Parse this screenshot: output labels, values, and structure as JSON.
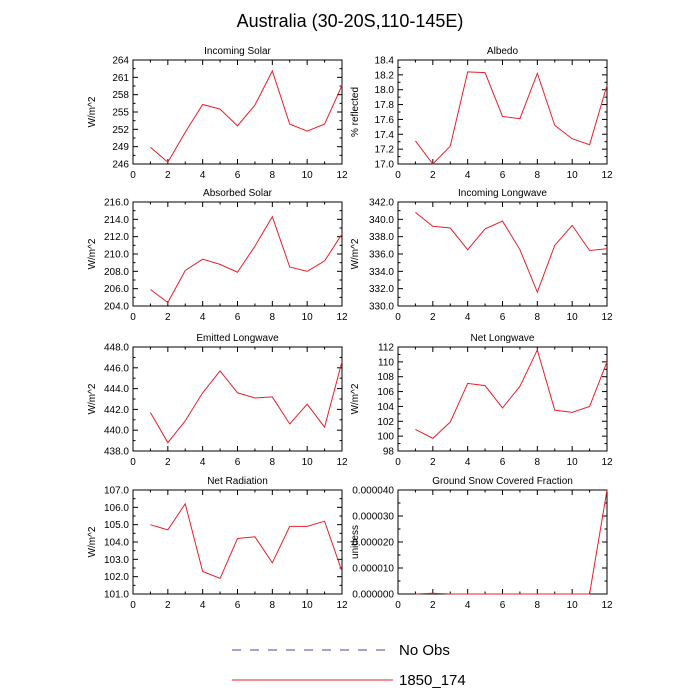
{
  "title": "Australia (30-20S,110-145E)",
  "legend": [
    {
      "label": "No Obs",
      "color": "#4a4aa0",
      "dash": true
    },
    {
      "label": "1850_174",
      "color": "#e8202a",
      "dash": false
    }
  ],
  "chart_data": [
    {
      "type": "line",
      "title": "Incoming Solar",
      "ylabel": "W/m^2",
      "xlim": [
        0,
        12
      ],
      "ylim": [
        246,
        264
      ],
      "xticks": [
        0,
        2,
        4,
        6,
        8,
        10,
        12
      ],
      "yticks": [
        "246",
        "249",
        "252",
        "255",
        "258",
        "261",
        "264"
      ],
      "series": [
        {
          "x": [
            1,
            2,
            3,
            4,
            5,
            6,
            7,
            8,
            9,
            10,
            11,
            12
          ],
          "values": [
            248.9,
            246.3,
            251.5,
            256.3,
            255.5,
            252.6,
            256.2,
            262.1,
            252.9,
            251.7,
            252.9,
            259.6
          ]
        }
      ]
    },
    {
      "type": "line",
      "title": "Albedo",
      "ylabel": "% reflected",
      "xlim": [
        0,
        12
      ],
      "ylim": [
        17.0,
        18.4
      ],
      "xticks": [
        0,
        2,
        4,
        6,
        8,
        10,
        12
      ],
      "yticks": [
        "17.0",
        "17.2",
        "17.4",
        "17.6",
        "17.8",
        "18.0",
        "18.2",
        "18.4"
      ],
      "series": [
        {
          "x": [
            1,
            2,
            3,
            4,
            5,
            6,
            7,
            8,
            9,
            10,
            11,
            12
          ],
          "values": [
            17.31,
            17.0,
            17.24,
            18.24,
            18.23,
            17.64,
            17.61,
            18.22,
            17.52,
            17.34,
            17.26,
            18.06
          ]
        }
      ]
    },
    {
      "type": "line",
      "title": "Absorbed Solar",
      "ylabel": "W/m^2",
      "xlim": [
        0,
        12
      ],
      "ylim": [
        204.0,
        216.0
      ],
      "xticks": [
        0,
        2,
        4,
        6,
        8,
        10,
        12
      ],
      "yticks": [
        "204.0",
        "206.0",
        "208.0",
        "210.0",
        "212.0",
        "214.0",
        "216.0"
      ],
      "series": [
        {
          "x": [
            1,
            2,
            3,
            4,
            5,
            6,
            7,
            8,
            9,
            10,
            11,
            12
          ],
          "values": [
            205.9,
            204.4,
            208.1,
            209.4,
            208.8,
            207.9,
            210.9,
            214.3,
            208.5,
            208.0,
            209.2,
            212.3
          ]
        }
      ]
    },
    {
      "type": "line",
      "title": "Incoming Longwave",
      "ylabel": "W/m^2",
      "xlim": [
        0,
        12
      ],
      "ylim": [
        330.0,
        342.0
      ],
      "xticks": [
        0,
        2,
        4,
        6,
        8,
        10,
        12
      ],
      "yticks": [
        "330.0",
        "332.0",
        "334.0",
        "336.0",
        "338.0",
        "340.0",
        "342.0"
      ],
      "series": [
        {
          "x": [
            1,
            2,
            3,
            4,
            5,
            6,
            7,
            8,
            9,
            10,
            11,
            12
          ],
          "values": [
            340.8,
            339.2,
            339.0,
            336.5,
            338.9,
            339.8,
            336.5,
            331.6,
            337.0,
            339.3,
            336.4,
            336.6
          ]
        }
      ]
    },
    {
      "type": "line",
      "title": "Emitted Longwave",
      "ylabel": "W/m^2",
      "xlim": [
        0,
        12
      ],
      "ylim": [
        438.0,
        448.0
      ],
      "xticks": [
        0,
        2,
        4,
        6,
        8,
        10,
        12
      ],
      "yticks": [
        "438.0",
        "440.0",
        "442.0",
        "444.0",
        "446.0",
        "448.0"
      ],
      "series": [
        {
          "x": [
            1,
            2,
            3,
            4,
            5,
            6,
            7,
            8,
            9,
            10,
            11,
            12
          ],
          "values": [
            441.7,
            438.8,
            440.9,
            443.6,
            445.7,
            443.6,
            443.1,
            443.2,
            440.6,
            442.5,
            440.3,
            446.6
          ]
        }
      ]
    },
    {
      "type": "line",
      "title": "Net Longwave",
      "ylabel": "W/m^2",
      "xlim": [
        0,
        12
      ],
      "ylim": [
        98,
        112
      ],
      "xticks": [
        0,
        2,
        4,
        6,
        8,
        10,
        12
      ],
      "yticks": [
        "98",
        "100",
        "102",
        "104",
        "106",
        "108",
        "110",
        "112"
      ],
      "series": [
        {
          "x": [
            1,
            2,
            3,
            4,
            5,
            6,
            7,
            8,
            9,
            10,
            11,
            12
          ],
          "values": [
            100.9,
            99.7,
            101.9,
            107.1,
            106.8,
            103.8,
            106.7,
            111.6,
            103.5,
            103.2,
            104.0,
            110.0
          ]
        }
      ]
    },
    {
      "type": "line",
      "title": "Net Radiation",
      "ylabel": "W/m^2",
      "xlim": [
        0,
        12
      ],
      "ylim": [
        101.0,
        107.0
      ],
      "xticks": [
        0,
        2,
        4,
        6,
        8,
        10,
        12
      ],
      "yticks": [
        "101.0",
        "102.0",
        "103.0",
        "104.0",
        "105.0",
        "106.0",
        "107.0"
      ],
      "series": [
        {
          "x": [
            1,
            2,
            3,
            4,
            5,
            6,
            7,
            8,
            9,
            10,
            11,
            12
          ],
          "values": [
            105.0,
            104.7,
            106.2,
            102.3,
            101.9,
            104.2,
            104.3,
            102.8,
            104.9,
            104.9,
            105.2,
            102.3
          ]
        }
      ]
    },
    {
      "type": "line",
      "title": "Ground Snow Covered Fraction",
      "ylabel": "unitless",
      "xlim": [
        0,
        12
      ],
      "ylim": [
        0.0,
        4e-05
      ],
      "xticks": [
        0,
        2,
        4,
        6,
        8,
        10,
        12
      ],
      "yticks": [
        "0.000000",
        "0.000010",
        "0.000020",
        "0.000030",
        "0.000040"
      ],
      "series": [
        {
          "x": [
            1,
            2,
            3,
            4,
            5,
            6,
            7,
            8,
            9,
            10,
            11,
            12
          ],
          "values": [
            0.0,
            3e-07,
            0.0,
            0.0,
            0.0,
            0.0,
            0.0,
            0.0,
            0.0,
            0.0,
            0.0,
            4e-05
          ]
        }
      ]
    }
  ]
}
